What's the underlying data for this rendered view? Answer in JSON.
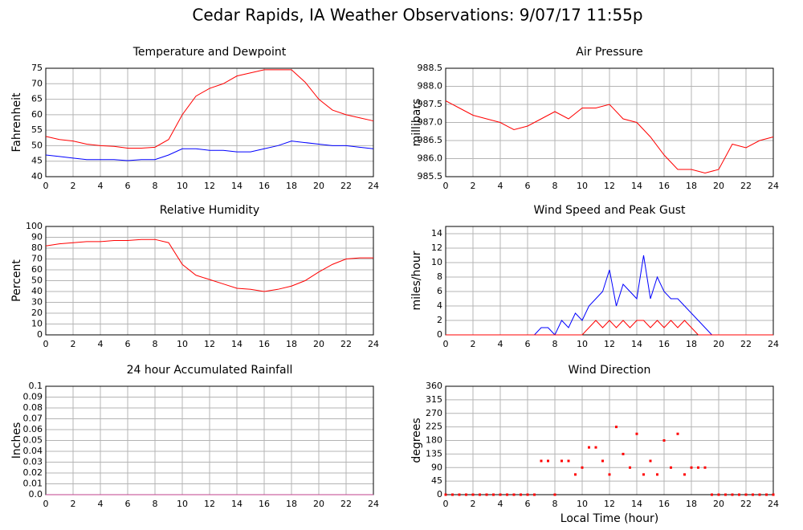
{
  "title": "Cedar Rapids, IA Weather Observations: 9/07/17 11:55p",
  "chart_data": [
    {
      "type": "line",
      "title": "Temperature and Dewpoint",
      "y_label": "Fahrenheit",
      "x": [
        0,
        1,
        2,
        3,
        4,
        5,
        6,
        7,
        8,
        9,
        10,
        11,
        12,
        13,
        14,
        15,
        16,
        17,
        18,
        19,
        20,
        21,
        22,
        23,
        24
      ],
      "series": [
        {
          "color": "#ff0000",
          "values": [
            53,
            52,
            51.5,
            50.5,
            50,
            49.8,
            49.2,
            49.2,
            49.5,
            52,
            60,
            66,
            68.5,
            70,
            72.5,
            73.5,
            74.5,
            74.5,
            74.5,
            70.5,
            65,
            61.5,
            60,
            59,
            58
          ]
        },
        {
          "color": "#0000ff",
          "values": [
            47,
            46.5,
            46,
            45.5,
            45.5,
            45.5,
            45.2,
            45.5,
            45.5,
            47,
            49,
            49,
            48.5,
            48.5,
            48,
            48,
            49,
            50,
            51.5,
            51,
            50.5,
            50,
            50,
            49.5,
            49
          ]
        }
      ],
      "xlim": [
        0,
        24
      ],
      "xticks": [
        0,
        2,
        4,
        6,
        8,
        10,
        12,
        14,
        16,
        18,
        20,
        22,
        24
      ],
      "ylim": [
        40,
        75
      ],
      "yticks": [
        40,
        45,
        50,
        55,
        60,
        65,
        70,
        75
      ],
      "grid": true
    },
    {
      "type": "line",
      "title": "Air Pressure",
      "y_label": "millibars",
      "x": [
        0,
        1,
        2,
        3,
        4,
        5,
        6,
        7,
        8,
        9,
        10,
        11,
        12,
        13,
        14,
        15,
        16,
        17,
        18,
        19,
        20,
        21,
        22,
        23,
        24
      ],
      "series": [
        {
          "color": "#ff0000",
          "values": [
            987.6,
            987.4,
            987.2,
            987.1,
            987.0,
            986.8,
            986.9,
            987.1,
            987.3,
            987.1,
            987.4,
            987.4,
            987.5,
            987.1,
            987.0,
            986.6,
            986.1,
            985.7,
            985.7,
            985.6,
            985.7,
            986.4,
            986.3,
            986.5,
            986.6
          ]
        }
      ],
      "xlim": [
        0,
        24
      ],
      "xticks": [
        0,
        2,
        4,
        6,
        8,
        10,
        12,
        14,
        16,
        18,
        20,
        22,
        24
      ],
      "ylim": [
        985.5,
        988.5
      ],
      "yticks": [
        985.5,
        {
          "value": 986,
          "label": "986.0"
        },
        986.5,
        {
          "value": 987,
          "label": "987.0"
        },
        987.5,
        {
          "value": 988,
          "label": "988.0"
        },
        988.5
      ],
      "grid": true
    },
    {
      "type": "line",
      "title": "Relative Humidity",
      "y_label": "Percent",
      "x": [
        0,
        1,
        2,
        3,
        4,
        5,
        6,
        7,
        8,
        9,
        10,
        11,
        12,
        13,
        14,
        15,
        16,
        17,
        18,
        19,
        20,
        21,
        22,
        23,
        24
      ],
      "series": [
        {
          "color": "#ff0000",
          "values": [
            82,
            84,
            85,
            86,
            86,
            87,
            87,
            88,
            88,
            85,
            65,
            55,
            51,
            47,
            43,
            42,
            40,
            42,
            45,
            50,
            58,
            65,
            70,
            71,
            71
          ]
        }
      ],
      "xlim": [
        0,
        24
      ],
      "xticks": [
        0,
        2,
        4,
        6,
        8,
        10,
        12,
        14,
        16,
        18,
        20,
        22,
        24
      ],
      "ylim": [
        0,
        100
      ],
      "yticks": [
        0,
        10,
        20,
        30,
        40,
        50,
        60,
        70,
        80,
        90,
        100
      ],
      "grid": true
    },
    {
      "type": "line",
      "title": "Wind Speed and Peak Gust",
      "y_label": "miles/hour",
      "x": [
        0,
        0.5,
        1,
        1.5,
        2,
        2.5,
        3,
        3.5,
        4,
        4.5,
        5,
        5.5,
        6,
        6.5,
        7,
        7.5,
        8,
        8.5,
        9,
        9.5,
        10,
        10.5,
        11,
        11.5,
        12,
        12.5,
        13,
        13.5,
        14,
        14.5,
        15,
        15.5,
        16,
        16.5,
        17,
        17.5,
        18,
        18.5,
        19,
        19.5,
        20,
        20.5,
        21,
        21.5,
        22,
        22.5,
        23,
        23.5,
        24
      ],
      "series": [
        {
          "color": "#0000ff",
          "values": [
            0,
            0,
            0,
            0,
            0,
            0,
            0,
            0,
            0,
            0,
            0,
            0,
            0,
            0,
            1,
            1,
            0,
            2,
            1,
            3,
            2,
            4,
            5,
            6,
            9,
            4,
            7,
            6,
            5,
            11,
            5,
            8,
            6,
            5,
            5,
            4,
            3,
            2,
            1,
            0,
            0,
            0,
            0,
            0,
            0,
            0,
            0,
            0,
            0
          ]
        },
        {
          "color": "#ff0000",
          "values": [
            0,
            0,
            0,
            0,
            0,
            0,
            0,
            0,
            0,
            0,
            0,
            0,
            0,
            0,
            0,
            0,
            0,
            0,
            0,
            0,
            0,
            1,
            2,
            1,
            2,
            1,
            2,
            1,
            2,
            2,
            1,
            2,
            1,
            2,
            1,
            2,
            1,
            0,
            0,
            0,
            0,
            0,
            0,
            0,
            0,
            0,
            0,
            0,
            0
          ]
        }
      ],
      "xlim": [
        0,
        24
      ],
      "xticks": [
        0,
        2,
        4,
        6,
        8,
        10,
        12,
        14,
        16,
        18,
        20,
        22,
        24
      ],
      "ylim": [
        0,
        15
      ],
      "yticks": [
        0,
        2,
        4,
        6,
        8,
        10,
        12,
        14
      ],
      "grid": true
    },
    {
      "type": "line",
      "title": "24 hour Accumulated Rainfall",
      "y_label": "Inches",
      "x": [
        0,
        24
      ],
      "series": [
        {
          "color": "#c0408c",
          "values": [
            0,
            0
          ]
        }
      ],
      "xlim": [
        0,
        24
      ],
      "xticks": [
        0,
        2,
        4,
        6,
        8,
        10,
        12,
        14,
        16,
        18,
        20,
        22,
        24
      ],
      "ylim": [
        0,
        0.1
      ],
      "yticks": [
        {
          "value": 0,
          "label": "0.0"
        },
        0.01,
        0.02,
        0.03,
        0.04,
        0.05,
        0.06,
        0.07,
        0.08,
        0.09,
        0.1
      ],
      "grid": true
    },
    {
      "type": "scatter",
      "title": "Wind Direction",
      "y_label": "degrees",
      "x_label": "Local Time (hour)",
      "x": [
        0,
        0.5,
        1,
        1.5,
        2,
        2.5,
        3,
        3.5,
        4,
        4.5,
        5,
        5.5,
        6,
        6.5,
        7,
        7.5,
        8,
        8.5,
        9,
        9.5,
        10,
        10.5,
        11,
        11.5,
        12,
        12.5,
        13,
        13.5,
        14,
        14.5,
        15,
        15.5,
        16,
        16.5,
        17,
        17.5,
        18,
        18.5,
        19,
        19.5,
        20,
        20.5,
        21,
        21.5,
        22,
        22.5,
        23,
        23.5,
        24
      ],
      "series": [
        {
          "color": "#ff0000",
          "values": [
            0,
            0,
            0,
            0,
            0,
            0,
            0,
            0,
            0,
            0,
            0,
            0,
            0,
            0,
            112,
            112,
            0,
            112,
            112,
            67,
            90,
            157,
            157,
            112,
            67,
            225,
            135,
            90,
            202,
            67,
            112,
            67,
            180,
            90,
            202,
            67,
            90,
            90,
            90,
            0,
            0,
            0,
            0,
            0,
            0,
            0,
            0,
            0,
            0
          ]
        }
      ],
      "xlim": [
        0,
        24
      ],
      "xticks": [
        0,
        2,
        4,
        6,
        8,
        10,
        12,
        14,
        16,
        18,
        20,
        22,
        24
      ],
      "ylim": [
        0,
        360
      ],
      "yticks": [
        0,
        45,
        90,
        135,
        180,
        225,
        270,
        315,
        360
      ],
      "grid": true
    }
  ]
}
